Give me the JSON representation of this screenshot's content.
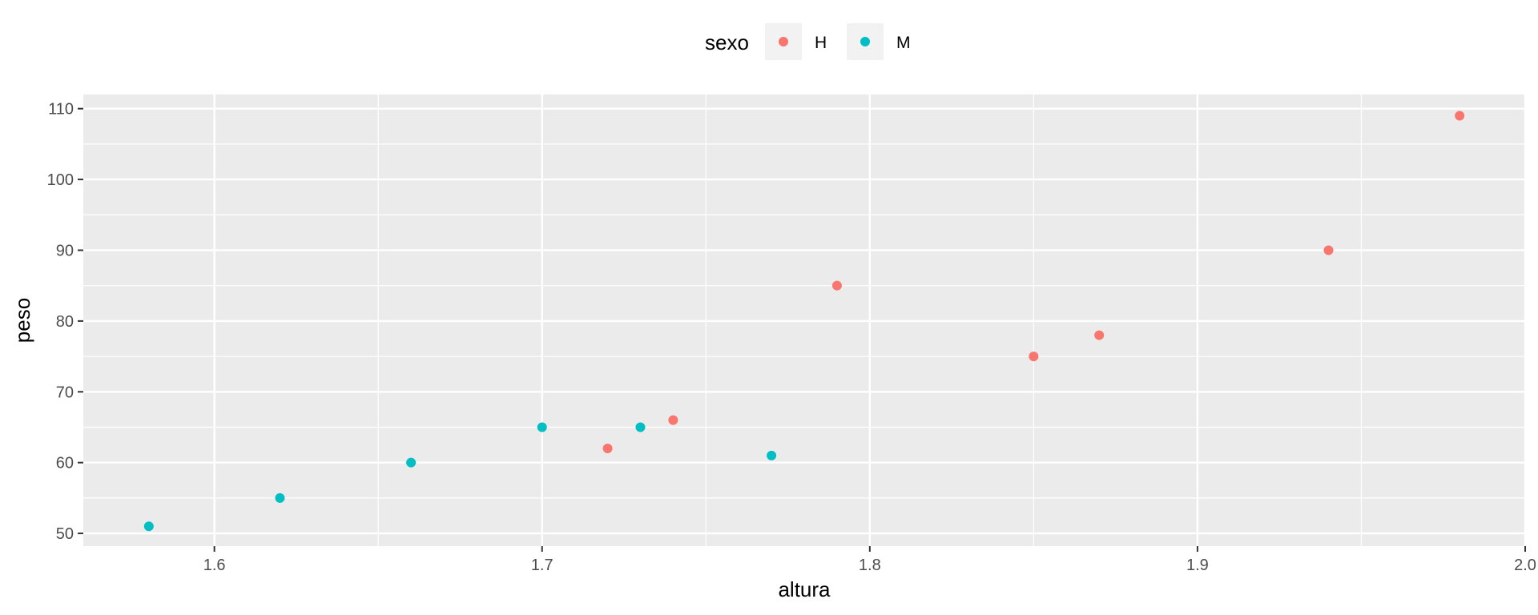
{
  "chart_data": {
    "type": "scatter",
    "title": "",
    "xlabel": "altura",
    "ylabel": "peso",
    "xlim": [
      1.56,
      2.0
    ],
    "ylim": [
      48.2,
      112
    ],
    "x_ticks": [
      1.6,
      1.7,
      1.8,
      1.9,
      2.0
    ],
    "x_tick_labels": [
      "1.6",
      "1.7",
      "1.8",
      "1.9",
      "2.0"
    ],
    "y_ticks": [
      50,
      60,
      70,
      80,
      90,
      100,
      110
    ],
    "y_tick_labels": [
      "50",
      "60",
      "70",
      "80",
      "90",
      "100",
      "110"
    ],
    "grid": true,
    "legend": {
      "title": "sexo",
      "placement": "top",
      "entries": [
        "H",
        "M"
      ]
    },
    "series": [
      {
        "name": "H",
        "color": "#F8766D",
        "points": [
          {
            "x": 1.72,
            "y": 62
          },
          {
            "x": 1.74,
            "y": 66
          },
          {
            "x": 1.79,
            "y": 85
          },
          {
            "x": 1.85,
            "y": 75
          },
          {
            "x": 1.87,
            "y": 78
          },
          {
            "x": 1.94,
            "y": 90
          },
          {
            "x": 1.98,
            "y": 109
          }
        ]
      },
      {
        "name": "M",
        "color": "#00BFC4",
        "points": [
          {
            "x": 1.58,
            "y": 51
          },
          {
            "x": 1.62,
            "y": 55
          },
          {
            "x": 1.66,
            "y": 60
          },
          {
            "x": 1.7,
            "y": 65
          },
          {
            "x": 1.73,
            "y": 65
          },
          {
            "x": 1.77,
            "y": 61
          }
        ]
      }
    ],
    "panel_background": "#EBEBEB",
    "grid_color": "#FFFFFF"
  }
}
